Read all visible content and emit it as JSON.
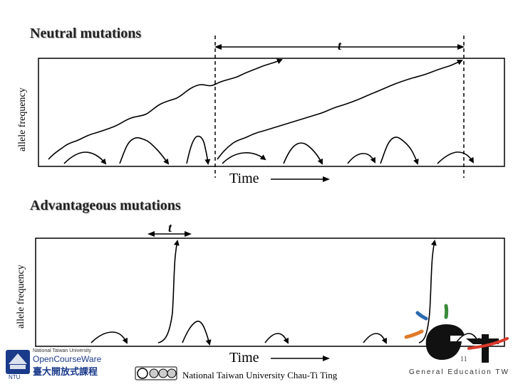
{
  "neutral": {
    "title": "Neutral mutations",
    "ylabel": "allele frequency",
    "t_label": "t",
    "time_label": "Time"
  },
  "advantageous": {
    "title": "Advantageous mutations",
    "ylabel": "allele frequency",
    "t_label": "t",
    "time_label": "Time"
  },
  "footer": {
    "credit": "National Taiwan University Chau-Ti Ting",
    "slide_number": "11"
  },
  "logos": {
    "ntu_line1": "National Taiwan University",
    "ntu_line2": "OpenCourseWare",
    "ntu_line3": "臺大開放式課程",
    "ntu_abbrev": "NTU",
    "get_text": "General Education TW",
    "license": "cc by nc nd"
  },
  "colors": {
    "line": "#000000",
    "get_red": "#d93a2b",
    "get_green": "#3a8a3a",
    "get_blue": "#2a6ab0",
    "get_orange": "#e07a2a",
    "ntu_blue": "#1a3a8a"
  }
}
